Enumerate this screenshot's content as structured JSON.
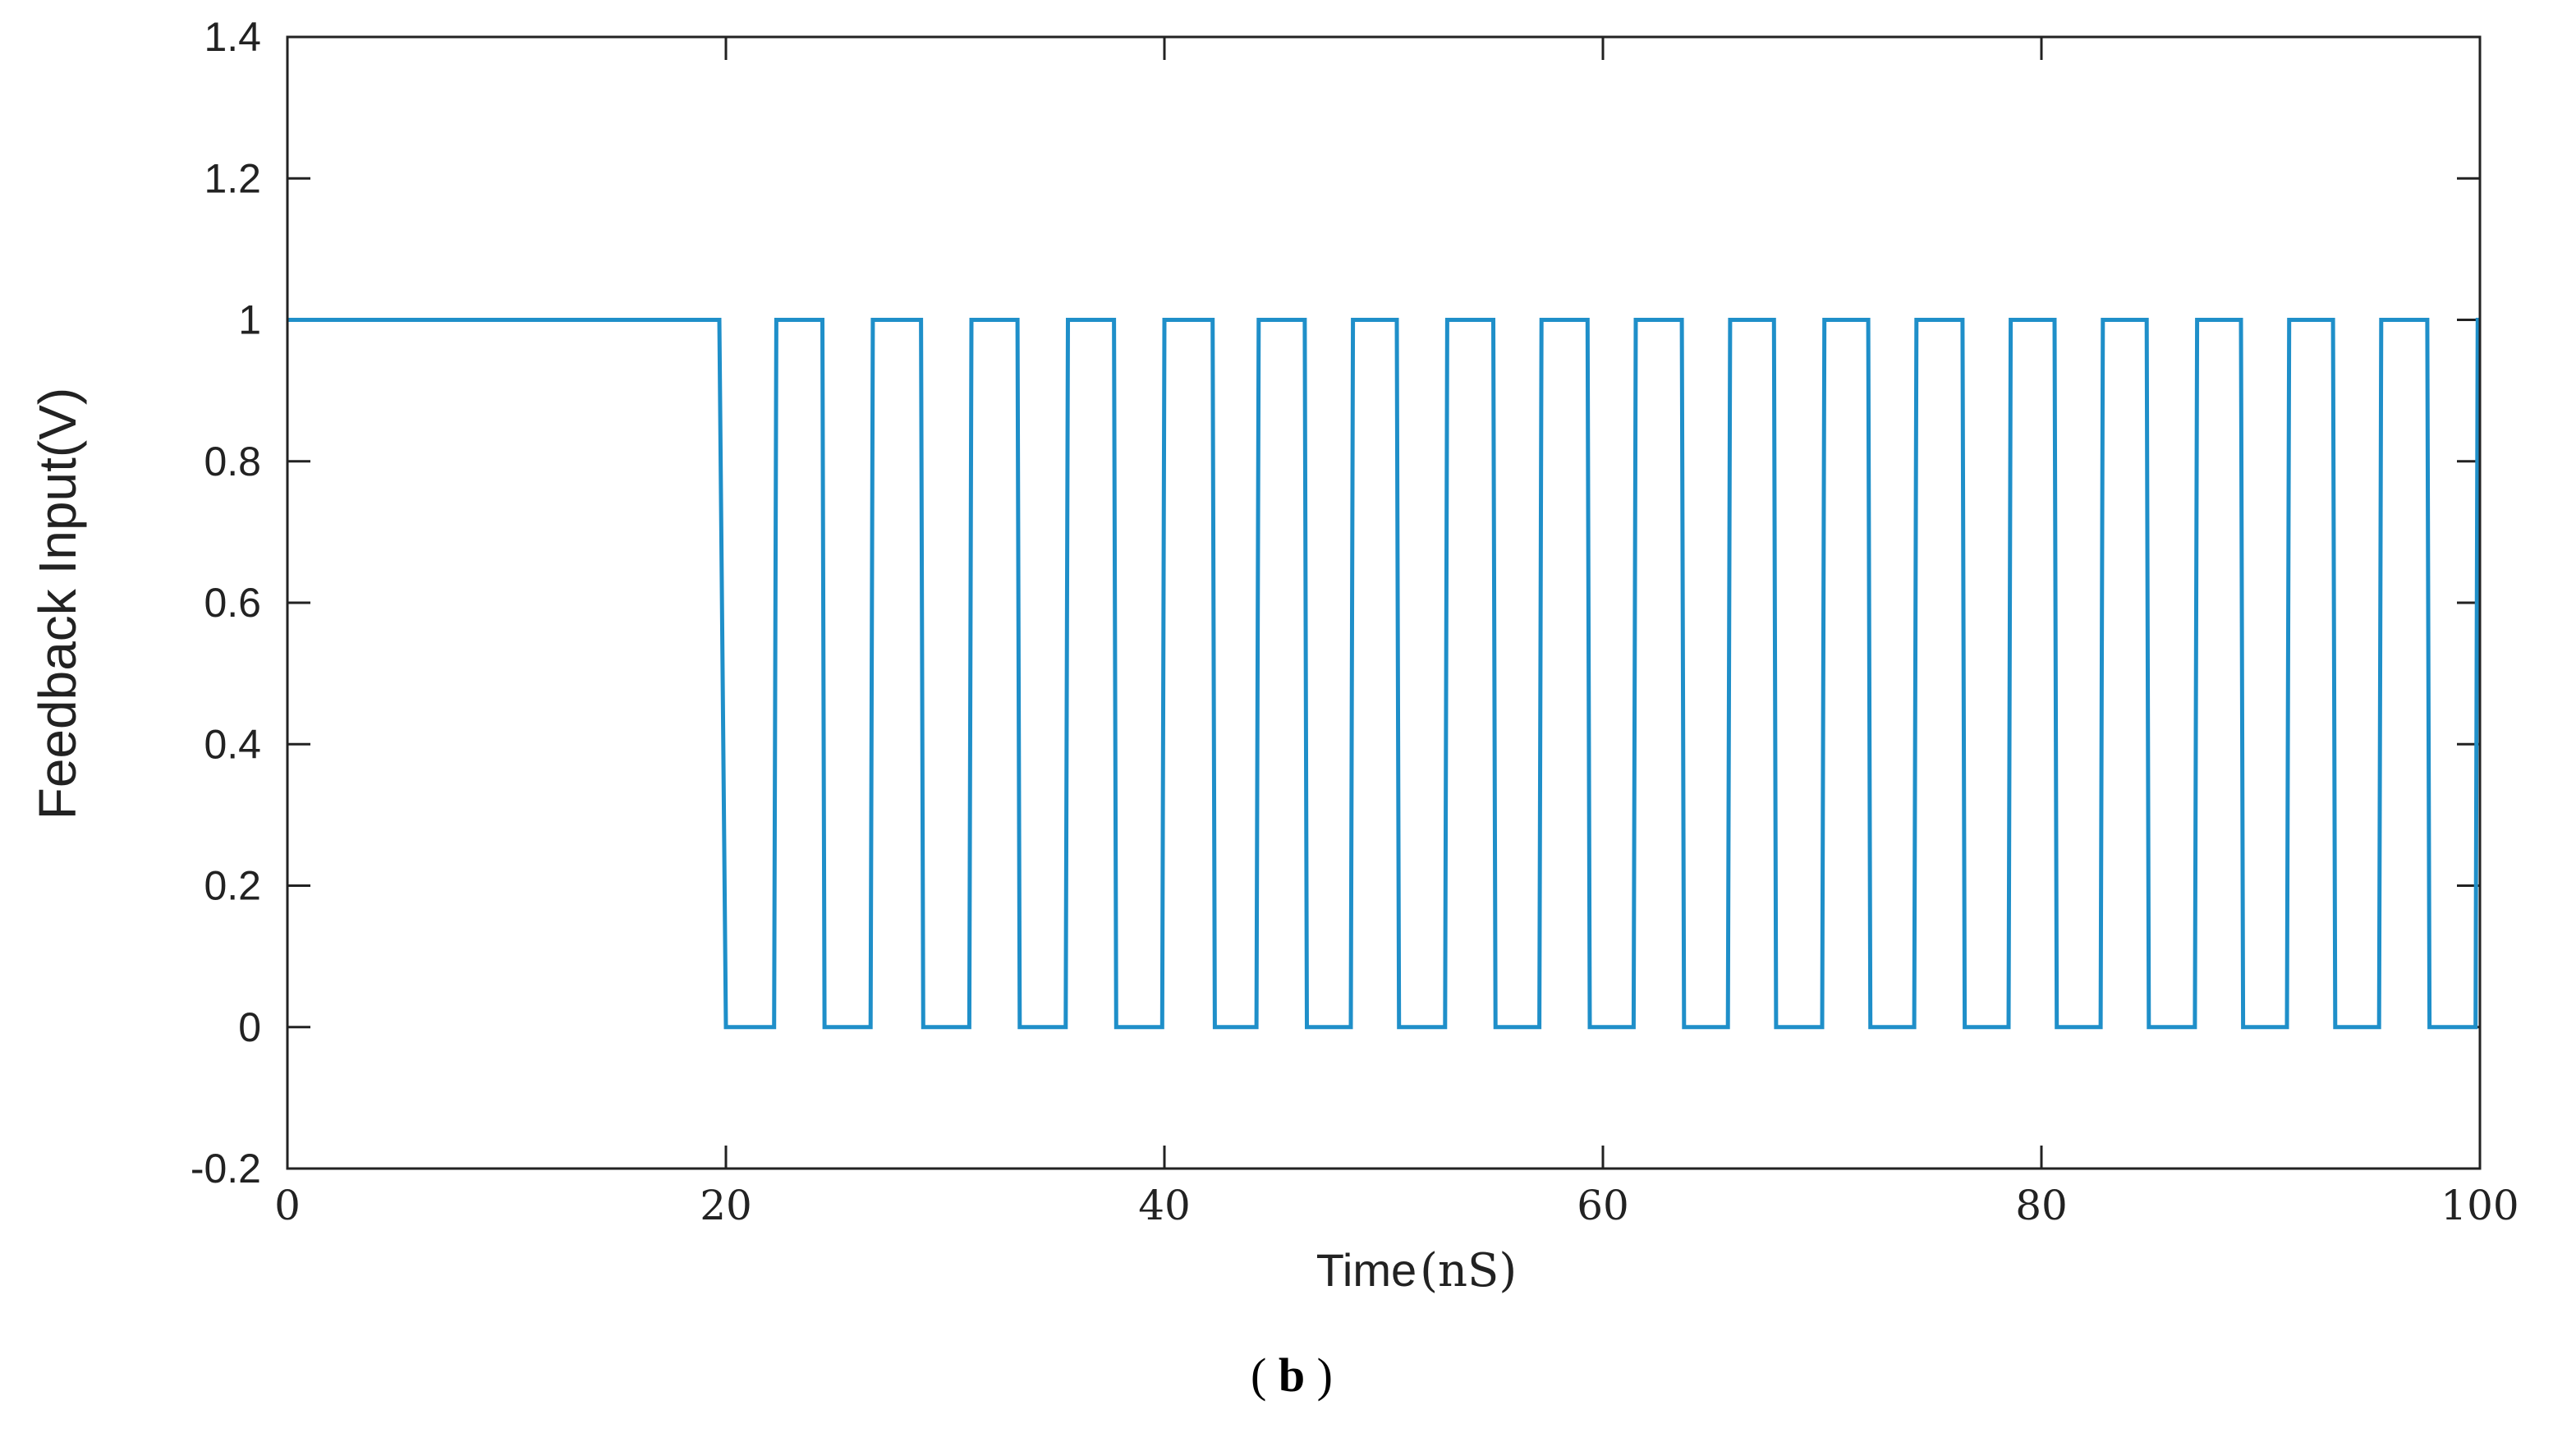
{
  "chart_data": {
    "type": "line",
    "xlabel": "Time",
    "xlabel_unit": "(nS)",
    "ylabel": "Feedback Input(V)",
    "caption_open": "(",
    "caption_letter": "b",
    "caption_close": ")",
    "xlim": [
      0,
      100
    ],
    "ylim": [
      -0.2,
      1.4
    ],
    "xticks": [
      0,
      20,
      40,
      60,
      80,
      100
    ],
    "xtick_labels": [
      "0",
      "20",
      "40",
      "60",
      "80",
      "100"
    ],
    "yticks": [
      -0.2,
      0,
      0.2,
      0.4,
      0.6,
      0.8,
      1,
      1.2,
      1.4
    ],
    "ytick_labels": [
      "-0.2",
      "0",
      "0.2",
      "0.4",
      "0.6",
      "0.8",
      "1",
      "1.2",
      "1.4"
    ],
    "grid": false,
    "line_color": "#1f8fc9",
    "series": [
      {
        "values_description_free": true,
        "points": [
          [
            0,
            1
          ],
          [
            19.7,
            1
          ],
          [
            20.0,
            0
          ],
          [
            22.2,
            0
          ],
          [
            22.3,
            1
          ],
          [
            24.4,
            1
          ],
          [
            24.5,
            0
          ],
          [
            26.6,
            0
          ],
          [
            26.7,
            1
          ],
          [
            28.9,
            1
          ],
          [
            29.0,
            0
          ],
          [
            31.1,
            0
          ],
          [
            31.2,
            1
          ],
          [
            33.3,
            1
          ],
          [
            33.4,
            0
          ],
          [
            35.5,
            0
          ],
          [
            35.6,
            1
          ],
          [
            37.7,
            1
          ],
          [
            37.8,
            0
          ],
          [
            39.9,
            0
          ],
          [
            40.0,
            1
          ],
          [
            42.2,
            1
          ],
          [
            42.3,
            0
          ],
          [
            44.2,
            0
          ],
          [
            44.3,
            1
          ],
          [
            46.4,
            1
          ],
          [
            46.5,
            0
          ],
          [
            48.5,
            0
          ],
          [
            48.6,
            1
          ],
          [
            50.6,
            1
          ],
          [
            50.7,
            0
          ],
          [
            52.8,
            0
          ],
          [
            52.9,
            1
          ],
          [
            55.0,
            1
          ],
          [
            55.1,
            0
          ],
          [
            57.1,
            0
          ],
          [
            57.2,
            1
          ],
          [
            59.3,
            1
          ],
          [
            59.4,
            0
          ],
          [
            61.4,
            0
          ],
          [
            61.5,
            1
          ],
          [
            63.6,
            1
          ],
          [
            63.7,
            0
          ],
          [
            65.7,
            0
          ],
          [
            65.8,
            1
          ],
          [
            67.8,
            1
          ],
          [
            67.9,
            0
          ],
          [
            70.0,
            0
          ],
          [
            70.1,
            1
          ],
          [
            72.1,
            1
          ],
          [
            72.2,
            0
          ],
          [
            74.2,
            0
          ],
          [
            74.3,
            1
          ],
          [
            76.4,
            1
          ],
          [
            76.5,
            0
          ],
          [
            78.5,
            0
          ],
          [
            78.6,
            1
          ],
          [
            80.6,
            1
          ],
          [
            80.7,
            0
          ],
          [
            82.7,
            0
          ],
          [
            82.8,
            1
          ],
          [
            84.8,
            1
          ],
          [
            84.9,
            0
          ],
          [
            87.0,
            0
          ],
          [
            87.1,
            1
          ],
          [
            89.1,
            1
          ],
          [
            89.2,
            0
          ],
          [
            91.2,
            0
          ],
          [
            91.3,
            1
          ],
          [
            93.3,
            1
          ],
          [
            93.4,
            0
          ],
          [
            95.4,
            0
          ],
          [
            95.5,
            1
          ],
          [
            97.6,
            1
          ],
          [
            97.7,
            0
          ],
          [
            99.8,
            0
          ],
          [
            99.9,
            1
          ],
          [
            100,
            1
          ]
        ]
      }
    ]
  }
}
